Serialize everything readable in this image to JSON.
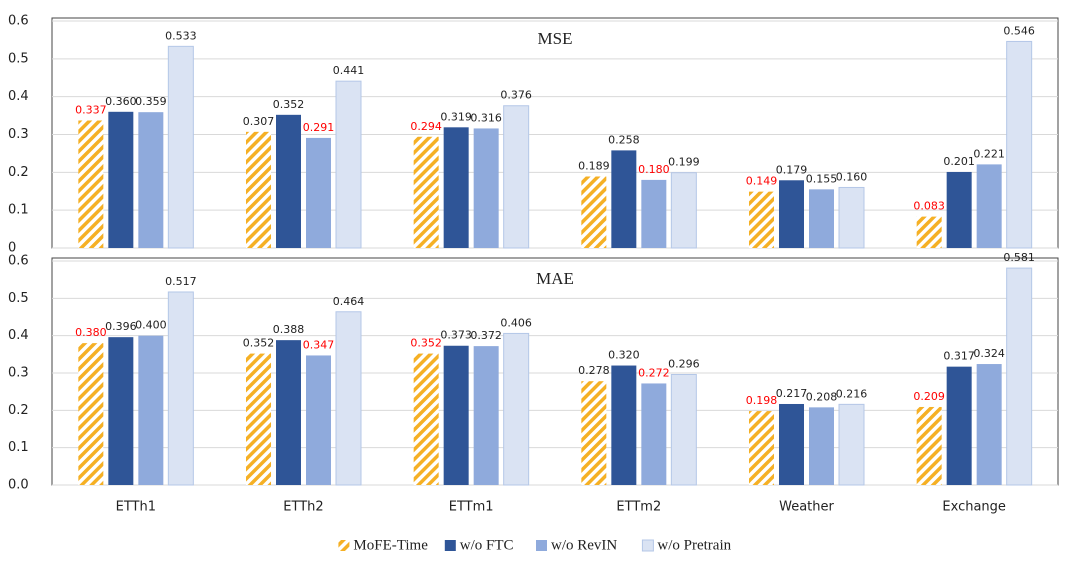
{
  "chart_data": [
    {
      "type": "bar",
      "title": "MSE",
      "ylim": [
        0,
        0.6
      ],
      "yticks": [
        0,
        0.1,
        0.2,
        0.3,
        0.4,
        0.5,
        0.6
      ],
      "grid": true,
      "highlight_color": "#ff0000",
      "series": [
        {
          "color": "#f5b025",
          "hatch": true,
          "values": [
            0.337,
            0.307,
            0.294,
            0.189,
            0.149,
            0.083
          ],
          "value_labels": [
            "0.337",
            "0.307",
            "0.294",
            "0.189",
            "0.149",
            "0.083"
          ]
        },
        {
          "color": "#2f5597",
          "values": [
            0.36,
            0.352,
            0.319,
            0.258,
            0.179,
            0.201
          ],
          "value_labels": [
            "0.360",
            "0.352",
            "0.319",
            "0.258",
            "0.179",
            "0.201"
          ]
        },
        {
          "color": "#8faadc",
          "values": [
            0.359,
            0.291,
            0.316,
            0.18,
            0.155,
            0.221
          ],
          "value_labels": [
            "0.359",
            "0.291",
            "0.316",
            "0.180",
            "0.155",
            "0.221"
          ]
        },
        {
          "color": "#dae3f3",
          "values": [
            0.533,
            0.441,
            0.376,
            0.199,
            0.16,
            0.546
          ],
          "value_labels": [
            "0.533",
            "0.441",
            "0.376",
            "0.199",
            "0.160",
            "0.546"
          ]
        }
      ]
    },
    {
      "type": "bar",
      "title": "MAE",
      "categories": [
        "ETTh1",
        "ETTh2",
        "ETTm1",
        "ETTm2",
        "Weather",
        "Exchange"
      ],
      "ylim": [
        0,
        0.6
      ],
      "yticks": [
        {
          "value": 0,
          "label": "0.0"
        },
        0.1,
        0.2,
        0.3,
        0.4,
        0.5,
        0.6
      ],
      "grid": true,
      "highlight_color": "#ff0000",
      "legend": "bottom",
      "series": [
        {
          "name": "MoFE-Time",
          "color": "#f5b025",
          "hatch": true,
          "values": [
            0.38,
            0.352,
            0.352,
            0.278,
            0.198,
            0.209
          ],
          "value_labels": [
            "0.380",
            "0.352",
            "0.352",
            "0.278",
            "0.198",
            "0.209"
          ]
        },
        {
          "name": "w/o FTC",
          "color": "#2f5597",
          "values": [
            0.396,
            0.388,
            0.373,
            0.32,
            0.217,
            0.317
          ],
          "value_labels": [
            "0.396",
            "0.388",
            "0.373",
            "0.320",
            "0.217",
            "0.317"
          ]
        },
        {
          "name": "w/o RevIN",
          "color": "#8faadc",
          "values": [
            0.4,
            0.347,
            0.372,
            0.272,
            0.208,
            0.324
          ],
          "value_labels": [
            "0.400",
            "0.347",
            "0.372",
            "0.272",
            "0.208",
            "0.324"
          ]
        },
        {
          "name": "w/o Pretrain",
          "color": "#dae3f3",
          "values": [
            0.517,
            0.464,
            0.406,
            0.296,
            0.216,
            0.581
          ],
          "value_labels": [
            "0.517",
            "0.464",
            "0.406",
            "0.296",
            "0.216",
            "0.581"
          ]
        }
      ]
    }
  ]
}
